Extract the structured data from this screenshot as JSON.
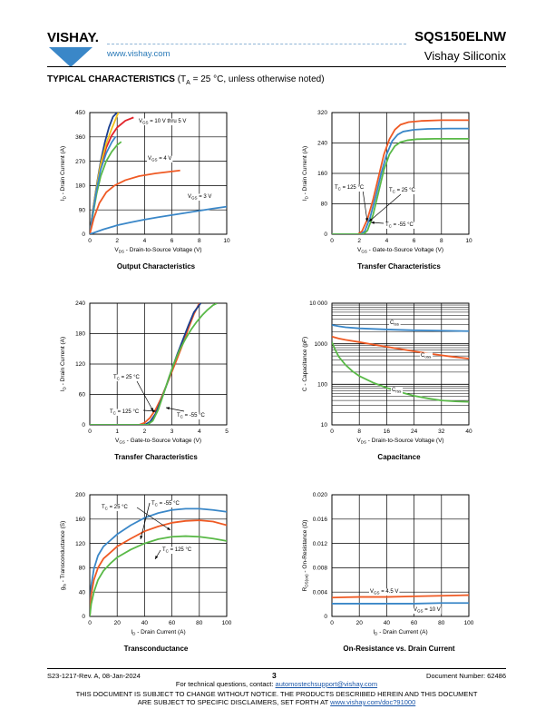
{
  "header": {
    "logo_text": "VISHAY.",
    "url": "www.vishay.com",
    "part_number": "SQS150ELNW",
    "company": "Vishay Siliconix"
  },
  "section": {
    "title": "TYPICAL CHARACTERISTICS",
    "condition": "(T",
    "condition_sub": "A",
    "condition_rest": " = 25 °C, unless otherwise noted)"
  },
  "colors": {
    "blue": "#3a87c8",
    "orange": "#ef5a24",
    "green": "#59b947",
    "red": "#e2232a",
    "yellow": "#f2c01c",
    "navy": "#1b3f8f"
  },
  "chart_data": [
    {
      "type": "line",
      "title": "Output Characteristics",
      "xlabel": "V",
      "xlabel_sub": "DS",
      "xlabel_rest": " - Drain-to-Source Voltage (V)",
      "ylabel": "I",
      "ylabel_sub": "D",
      "ylabel_rest": " - Drain Current (A)",
      "xlim": [
        0,
        10
      ],
      "ylim": [
        0,
        450
      ],
      "xticks": [
        "0",
        "2",
        "4",
        "6",
        "8",
        "10"
      ],
      "yticks": [
        "0",
        "90",
        "180",
        "270",
        "360",
        "450"
      ],
      "annotations": [
        {
          "text": "V",
          "sub": "GS",
          "rest": " = 10 V thru 5 V"
        },
        {
          "text": "V",
          "sub": "GS",
          "rest": " = 4 V"
        },
        {
          "text": "V",
          "sub": "GS",
          "rest": " = 3 V"
        }
      ],
      "series": [
        {
          "color": "#1b3f8f",
          "x": [
            0,
            0.2,
            0.5,
            0.8,
            1.1,
            1.4,
            1.7,
            2.0
          ],
          "y": [
            0,
            80,
            180,
            270,
            340,
            395,
            435,
            450
          ]
        },
        {
          "color": "#e2232a",
          "x": [
            0,
            0.2,
            0.5,
            0.8,
            1.2,
            1.6,
            2.0,
            2.6,
            3.2
          ],
          "y": [
            0,
            75,
            170,
            250,
            320,
            365,
            395,
            420,
            432
          ]
        },
        {
          "color": "#f2c01c",
          "x": [
            0,
            0.2,
            0.5,
            0.8,
            1.2,
            1.6,
            2.0,
            2.1
          ],
          "y": [
            0,
            78,
            175,
            260,
            335,
            390,
            440,
            450
          ]
        },
        {
          "color": "#59b947",
          "x": [
            0,
            0.2,
            0.5,
            0.8,
            1.2,
            1.6,
            2.0,
            2.3
          ],
          "y": [
            0,
            65,
            150,
            215,
            270,
            305,
            330,
            342
          ]
        },
        {
          "color": "#3a87c8",
          "x": [
            0,
            0.2,
            0.5,
            0.8,
            1.2,
            1.6,
            1.9
          ],
          "y": [
            0,
            72,
            165,
            240,
            300,
            340,
            362
          ]
        },
        {
          "color": "#ef5a24",
          "x": [
            0,
            0.3,
            0.7,
            1.2,
            1.8,
            2.6,
            3.6,
            4.8,
            6.6
          ],
          "y": [
            0,
            60,
            115,
            155,
            180,
            200,
            215,
            225,
            236
          ]
        },
        {
          "color": "#3a87c8",
          "x": [
            0,
            1,
            2,
            3,
            4,
            5,
            6,
            7,
            8,
            9,
            10
          ],
          "y": [
            0,
            18,
            33,
            44,
            54,
            63,
            71,
            79,
            87,
            95,
            102
          ]
        }
      ]
    },
    {
      "type": "line",
      "title": "Transfer Characteristics",
      "xlabel": "V",
      "xlabel_sub": "GS",
      "xlabel_rest": " - Gate-to-Source Voltage (V)",
      "ylabel": "I",
      "ylabel_sub": "D",
      "ylabel_rest": " - Drain Current (A)",
      "xlim": [
        0,
        10
      ],
      "ylim": [
        0,
        320
      ],
      "xticks": [
        "0",
        "2",
        "4",
        "6",
        "8",
        "10"
      ],
      "yticks": [
        "0",
        "80",
        "160",
        "240",
        "320"
      ],
      "annotations": [
        {
          "text": "T",
          "sub": "C",
          "rest": " = 125 °C"
        },
        {
          "text": "T",
          "sub": "C",
          "rest": " = 25 °C"
        },
        {
          "text": "T",
          "sub": "C",
          "rest": " = -55 °C"
        }
      ],
      "series": [
        {
          "color": "#ef5a24",
          "x": [
            0,
            1.9,
            2.2,
            2.6,
            3.0,
            3.4,
            3.8,
            4.2,
            4.6,
            5.0,
            5.6,
            6.5,
            8,
            10
          ],
          "y": [
            0,
            0,
            8,
            40,
            90,
            150,
            210,
            250,
            275,
            288,
            295,
            298,
            300,
            300
          ]
        },
        {
          "color": "#3a87c8",
          "x": [
            0,
            2.1,
            2.4,
            2.8,
            3.2,
            3.6,
            4.0,
            4.4,
            4.8,
            5.2,
            6.0,
            7,
            8.5,
            10
          ],
          "y": [
            0,
            0,
            8,
            45,
            100,
            160,
            210,
            245,
            262,
            270,
            275,
            277,
            278,
            278
          ]
        },
        {
          "color": "#59b947",
          "x": [
            0,
            2.3,
            2.6,
            3.0,
            3.4,
            3.8,
            4.2,
            4.6,
            5.0,
            5.5,
            6.2,
            7.5,
            10
          ],
          "y": [
            0,
            0,
            10,
            50,
            110,
            170,
            210,
            232,
            242,
            247,
            250,
            251,
            251
          ]
        }
      ]
    },
    {
      "type": "line",
      "title": "Transfer Characteristics",
      "xlabel": "V",
      "xlabel_sub": "GS",
      "xlabel_rest": " - Gate-to-Source Voltage (V)",
      "ylabel": "I",
      "ylabel_sub": "D",
      "ylabel_rest": " - Drain Current (A)",
      "xlim": [
        0,
        5
      ],
      "ylim": [
        0,
        240
      ],
      "xticks": [
        "0",
        "1",
        "2",
        "3",
        "4",
        "5"
      ],
      "yticks": [
        "0",
        "60",
        "120",
        "180",
        "240"
      ],
      "annotations": [
        {
          "text": "T",
          "sub": "C",
          "rest": " = 25 °C"
        },
        {
          "text": "T",
          "sub": "C",
          "rest": " = 125 °C"
        },
        {
          "text": "T",
          "sub": "C",
          "rest": " = -55 °C"
        }
      ],
      "series": [
        {
          "color": "#ef5a24",
          "x": [
            0,
            1.8,
            2.0,
            2.2,
            2.4,
            2.6,
            2.8,
            3.0,
            3.2,
            3.4,
            3.6,
            3.8,
            4.0
          ],
          "y": [
            0,
            0,
            4,
            14,
            30,
            52,
            78,
            105,
            132,
            160,
            190,
            218,
            240
          ]
        },
        {
          "color": "#1b3f8f",
          "x": [
            0,
            2.0,
            2.2,
            2.4,
            2.6,
            2.8,
            3.0,
            3.2,
            3.4,
            3.6,
            3.8,
            4.05
          ],
          "y": [
            0,
            0,
            6,
            22,
            48,
            78,
            110,
            140,
            168,
            196,
            222,
            240
          ]
        },
        {
          "color": "#59b947",
          "x": [
            0,
            2.1,
            2.3,
            2.5,
            2.7,
            2.9,
            3.1,
            3.3,
            3.5,
            3.7,
            3.9,
            4.1,
            4.3,
            4.5,
            4.65
          ],
          "y": [
            0,
            0,
            8,
            30,
            62,
            95,
            125,
            150,
            170,
            188,
            203,
            216,
            227,
            236,
            240
          ]
        }
      ]
    },
    {
      "type": "line",
      "title": "Capacitance",
      "xlabel": "V",
      "xlabel_sub": "DS",
      "xlabel_rest": " - Drain-to-Source Voltage (V)",
      "ylabel": "C - Capacitance (pF)",
      "ylabel_sub": "",
      "ylabel_rest": "",
      "xlim": [
        0,
        40
      ],
      "ylim": [
        10,
        10000
      ],
      "yscale": "log",
      "xticks": [
        "0",
        "8",
        "16",
        "24",
        "32",
        "40"
      ],
      "yticks": [
        "10",
        "100",
        "1000",
        "10 000"
      ],
      "annotations": [
        {
          "text": "C",
          "sub": "iss",
          "rest": ""
        },
        {
          "text": "C",
          "sub": "oss",
          "rest": ""
        },
        {
          "text": "C",
          "sub": "rss",
          "rest": ""
        }
      ],
      "series": [
        {
          "color": "#3a87c8",
          "x": [
            0,
            2,
            4,
            8,
            16,
            24,
            32,
            40
          ],
          "y": [
            2900,
            2700,
            2550,
            2400,
            2250,
            2150,
            2100,
            2050
          ]
        },
        {
          "color": "#ef5a24",
          "x": [
            0,
            2,
            4,
            8,
            12,
            16,
            20,
            24,
            28,
            32,
            36,
            40
          ],
          "y": [
            1500,
            1350,
            1250,
            1100,
            960,
            840,
            740,
            650,
            580,
            520,
            470,
            430
          ]
        },
        {
          "color": "#59b947",
          "x": [
            0,
            1,
            2,
            4,
            6,
            8,
            12,
            16,
            20,
            24,
            28,
            32,
            36,
            40
          ],
          "y": [
            1100,
            700,
            480,
            300,
            210,
            160,
            110,
            82,
            64,
            52,
            45,
            40,
            38,
            37
          ]
        }
      ]
    },
    {
      "type": "line",
      "title": "Transconductance",
      "xlabel": "I",
      "xlabel_sub": "D",
      "xlabel_rest": " - Drain Current (A)",
      "ylabel": "g",
      "ylabel_sub": "fs",
      "ylabel_rest": " - Transconductance (S)",
      "xlim": [
        0,
        100
      ],
      "ylim": [
        0,
        200
      ],
      "xticks": [
        "0",
        "20",
        "40",
        "60",
        "80",
        "100"
      ],
      "yticks": [
        "0",
        "40",
        "80",
        "120",
        "160",
        "200"
      ],
      "annotations": [
        {
          "text": "T",
          "sub": "C",
          "rest": " = 25 °C"
        },
        {
          "text": "T",
          "sub": "C",
          "rest": " = -55 °C"
        },
        {
          "text": "T",
          "sub": "C",
          "rest": " = 125 °C"
        }
      ],
      "series": [
        {
          "color": "#3a87c8",
          "x": [
            0,
            1,
            3,
            6,
            10,
            15,
            20,
            30,
            40,
            50,
            60,
            70,
            80,
            90,
            100
          ],
          "y": [
            0,
            50,
            78,
            100,
            115,
            125,
            135,
            150,
            162,
            170,
            175,
            177,
            177,
            175,
            172
          ]
        },
        {
          "color": "#ef5a24",
          "x": [
            0,
            1,
            3,
            6,
            10,
            15,
            20,
            30,
            40,
            50,
            60,
            70,
            80,
            90,
            100
          ],
          "y": [
            0,
            35,
            60,
            80,
            95,
            105,
            115,
            128,
            140,
            148,
            154,
            157,
            158,
            156,
            150
          ]
        },
        {
          "color": "#59b947",
          "x": [
            0,
            1,
            3,
            6,
            10,
            15,
            20,
            30,
            40,
            50,
            60,
            70,
            80,
            90,
            100
          ],
          "y": [
            0,
            20,
            40,
            60,
            75,
            87,
            97,
            110,
            120,
            127,
            131,
            132,
            131,
            128,
            124
          ]
        }
      ]
    },
    {
      "type": "line",
      "title": "On-Resistance vs. Drain Current",
      "xlabel": "I",
      "xlabel_sub": "D",
      "xlabel_rest": " - Drain Current (A)",
      "ylabel": "R",
      "ylabel_sub": "DS(on)",
      "ylabel_rest": " - On-Resistance (Ω)",
      "xlim": [
        0,
        100
      ],
      "ylim": [
        0,
        0.02
      ],
      "xticks": [
        "0",
        "20",
        "40",
        "60",
        "80",
        "100"
      ],
      "yticks": [
        "0",
        "0.004",
        "0.008",
        "0.012",
        "0.016",
        "0.020"
      ],
      "annotations": [
        {
          "text": "V",
          "sub": "GS",
          "rest": " = 4.5 V"
        },
        {
          "text": "V",
          "sub": "GS",
          "rest": " = 10 V"
        }
      ],
      "series": [
        {
          "color": "#ef5a24",
          "x": [
            0,
            20,
            40,
            60,
            80,
            100
          ],
          "y": [
            0.0031,
            0.0032,
            0.0032,
            0.0033,
            0.0034,
            0.0035
          ]
        },
        {
          "color": "#3a87c8",
          "x": [
            0,
            20,
            40,
            60,
            80,
            100
          ],
          "y": [
            0.0021,
            0.0021,
            0.0021,
            0.0021,
            0.0022,
            0.0022
          ]
        }
      ]
    }
  ],
  "footer": {
    "doc_rev": "S23-1217-Rev. A, 08-Jan-2024",
    "page": "3",
    "doc_number": "Document Number: 62486",
    "contact_prefix": "For technical questions, contact: ",
    "contact_email": "automostechsupport@vishay.com",
    "disclaimer1": "THIS DOCUMENT IS SUBJECT TO CHANGE WITHOUT NOTICE. THE PRODUCTS DESCRIBED HEREIN AND THIS DOCUMENT",
    "disclaimer2_prefix": "ARE SUBJECT TO SPECIFIC DISCLAIMERS, SET FORTH AT ",
    "disclaimer2_link": "www.vishay.com/doc?91000"
  }
}
